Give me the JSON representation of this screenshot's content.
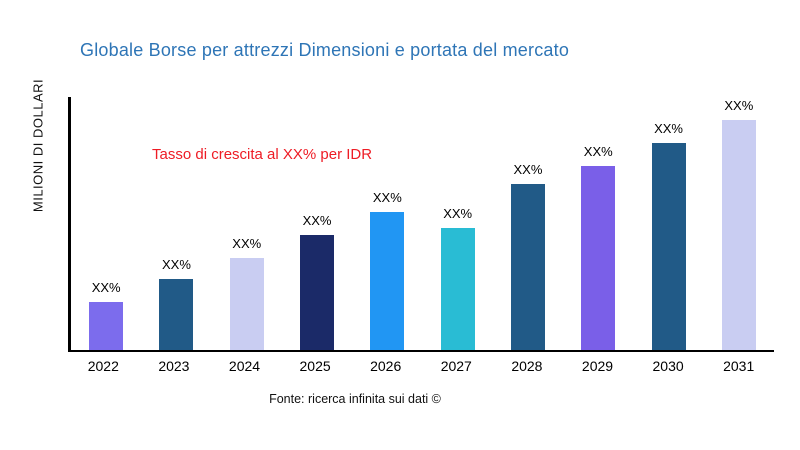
{
  "title": "Globale Borse per attrezzi Dimensioni e portata del mercato",
  "y_axis_label": "MILIONI DI DOLLARI",
  "annotation": "Tasso di crescita al XX% per IDR",
  "source": "Fonte: ricerca infinita sui dati ©",
  "colors": {
    "title": "#2e75b6",
    "annotation": "#ee1c25",
    "axis": "#000000"
  },
  "chart_data": {
    "type": "bar",
    "title": "Globale Borse per attrezzi Dimensioni e portata del mercato",
    "xlabel": "",
    "ylabel": "MILIONI DI DOLLARI",
    "legend": "none",
    "grid": "off",
    "y_axis_ticks": "none (unlabeled axis, values masked as XX%)",
    "categories": [
      "2022",
      "2023",
      "2024",
      "2025",
      "2026",
      "2027",
      "2028",
      "2029",
      "2030",
      "2031"
    ],
    "values_relative": [
      21,
      31,
      40,
      50,
      60,
      53,
      72,
      80,
      90,
      100
    ],
    "value_labels": [
      "XX%",
      "XX%",
      "XX%",
      "XX%",
      "XX%",
      "XX%",
      "XX%",
      "XX%",
      "XX%",
      "XX%"
    ],
    "bar_colors": [
      "#7c6ced",
      "#215a87",
      "#c9cdf2",
      "#1b2a68",
      "#2196f3",
      "#29bcd4",
      "#215a87",
      "#7a5fe8",
      "#215a87",
      "#c9cdf2"
    ]
  }
}
